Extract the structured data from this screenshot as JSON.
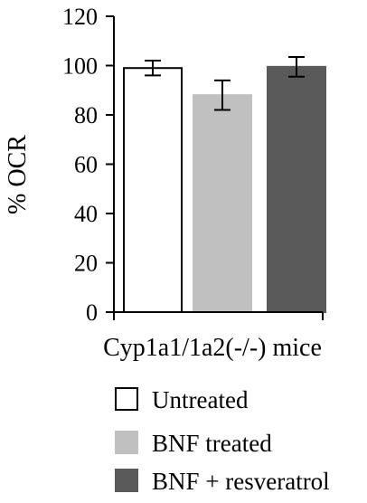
{
  "chart_data": {
    "type": "bar",
    "title": "",
    "xlabel": "Cyp1a1/1a2(-/-) mice",
    "ylabel": "% OCR",
    "ylim": [
      0,
      120
    ],
    "yticks": [
      0,
      20,
      40,
      60,
      80,
      100,
      120
    ],
    "grid": false,
    "legend_position": "bottom",
    "series": [
      {
        "name": "Untreated",
        "value": 99,
        "error": 3,
        "color": "#ffffff",
        "stroke": "#000000"
      },
      {
        "name": "BNF treated",
        "value": 88,
        "error": 6,
        "color": "#c0c0c0",
        "stroke": "#c0c0c0"
      },
      {
        "name": "BNF + resveratrol",
        "value": 99.5,
        "error": 4,
        "color": "#5a5a5a",
        "stroke": "#5a5a5a"
      }
    ]
  }
}
